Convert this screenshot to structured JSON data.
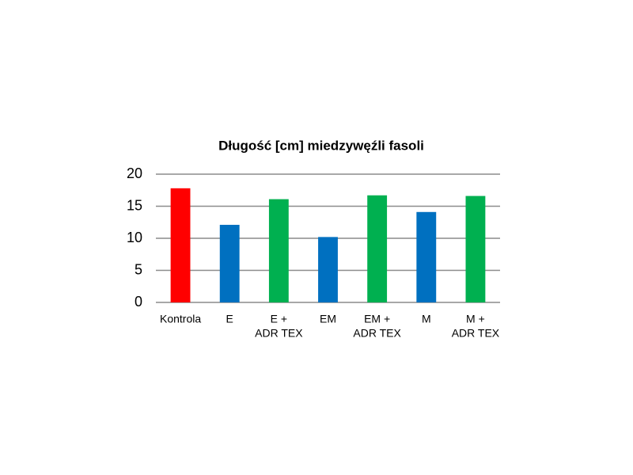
{
  "chart_data": {
    "type": "bar",
    "title": "Długość [cm] miedzywęźli fasoli",
    "categories": [
      [
        "Kontrola"
      ],
      [
        "E"
      ],
      [
        "E +",
        "ADR TEX"
      ],
      [
        "EM"
      ],
      [
        "EM +",
        "ADR TEX"
      ],
      [
        "M"
      ],
      [
        "M +",
        "ADR TEX"
      ]
    ],
    "values": [
      17.8,
      12.1,
      16.1,
      10.2,
      16.7,
      14.1,
      16.6
    ],
    "colors": [
      "#ff0000",
      "#0070c0",
      "#00b050",
      "#0070c0",
      "#00b050",
      "#0070c0",
      "#00b050"
    ],
    "ylim": [
      0,
      20
    ],
    "yticks": [
      0,
      5,
      10,
      15,
      20
    ],
    "grid": true
  }
}
